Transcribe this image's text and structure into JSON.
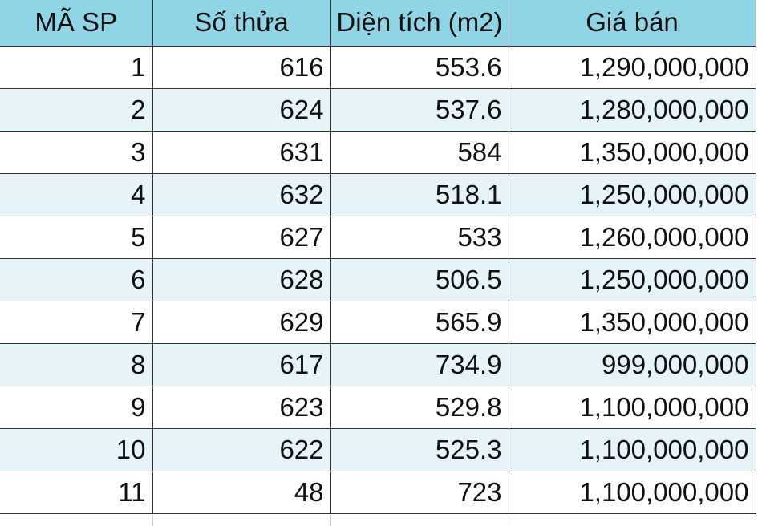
{
  "table": {
    "headers": [
      "MÃ SP",
      "Số thửa",
      "Diện tích (m2)",
      "Giá bán"
    ],
    "rows": [
      [
        "1",
        "616",
        "553.6",
        "1,290,000,000"
      ],
      [
        "2",
        "624",
        "537.6",
        "1,280,000,000"
      ],
      [
        "3",
        "631",
        "584",
        "1,350,000,000"
      ],
      [
        "4",
        "632",
        "518.1",
        "1,250,000,000"
      ],
      [
        "5",
        "627",
        "533",
        "1,260,000,000"
      ],
      [
        "6",
        "628",
        "506.5",
        "1,250,000,000"
      ],
      [
        "7",
        "629",
        "565.9",
        "1,350,000,000"
      ],
      [
        "8",
        "617",
        "734.9",
        "999,000,000"
      ],
      [
        "9",
        "623",
        "529.8",
        "1,100,000,000"
      ],
      [
        "10",
        "622",
        "525.3",
        "1,100,000,000"
      ],
      [
        "11",
        "48",
        "723",
        "1,100,000,000"
      ]
    ]
  },
  "colors": {
    "header_background": "#8fd5e6",
    "alternate_row_background": "#e6f4fa",
    "grid_border": "#333333"
  }
}
